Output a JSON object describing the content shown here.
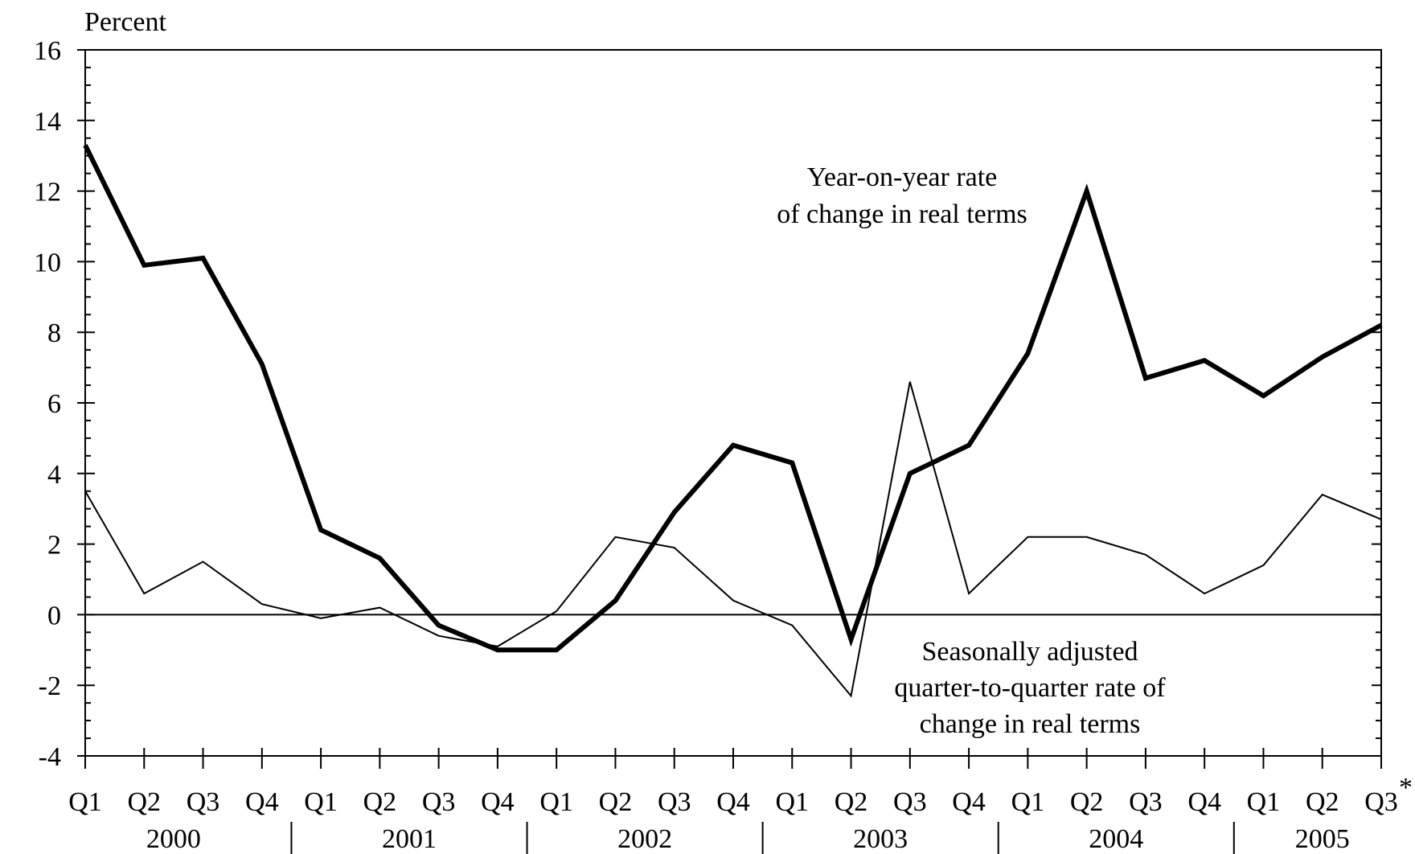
{
  "chart_data": {
    "type": "line",
    "ylabel": "Percent",
    "ylim": [
      -4,
      16
    ],
    "yticks": [
      "-4",
      "-2",
      "0",
      "2",
      "4",
      "6",
      "8",
      "10",
      "12",
      "14",
      "16"
    ],
    "x": [
      "Q1",
      "Q2",
      "Q3",
      "Q4",
      "Q1",
      "Q2",
      "Q3",
      "Q4",
      "Q1",
      "Q2",
      "Q3",
      "Q4",
      "Q1",
      "Q2",
      "Q3",
      "Q4",
      "Q1",
      "Q2",
      "Q3",
      "Q4",
      "Q1",
      "Q2",
      "Q3"
    ],
    "last_label_mark": "*",
    "years": [
      "2000",
      "2001",
      "2002",
      "2003",
      "2004",
      "2005"
    ],
    "series": [
      {
        "name": "Year-on-year rate of change in real terms",
        "values": [
          13.3,
          9.9,
          10.1,
          7.1,
          2.4,
          1.6,
          -0.3,
          -1.0,
          -1.0,
          0.4,
          2.9,
          4.8,
          4.3,
          -0.7,
          4.0,
          4.8,
          7.4,
          12.0,
          6.7,
          7.2,
          6.2,
          7.3,
          8.2
        ]
      },
      {
        "name": "Seasonally adjusted quarter-to-quarter rate of change in real terms",
        "values": [
          3.5,
          0.6,
          1.5,
          0.3,
          -0.1,
          0.2,
          -0.6,
          -0.9,
          0.1,
          2.2,
          1.9,
          0.4,
          -0.3,
          -2.3,
          6.6,
          0.6,
          2.2,
          2.2,
          1.7,
          0.6,
          1.4,
          3.4,
          2.7
        ]
      }
    ],
    "annotations": {
      "yoy": [
        "Year-on-year rate",
        "of change in real terms"
      ],
      "qoq": [
        "Seasonally adjusted",
        "quarter-to-quarter rate of",
        "change in real terms"
      ]
    },
    "grid": false,
    "legend": "none"
  }
}
